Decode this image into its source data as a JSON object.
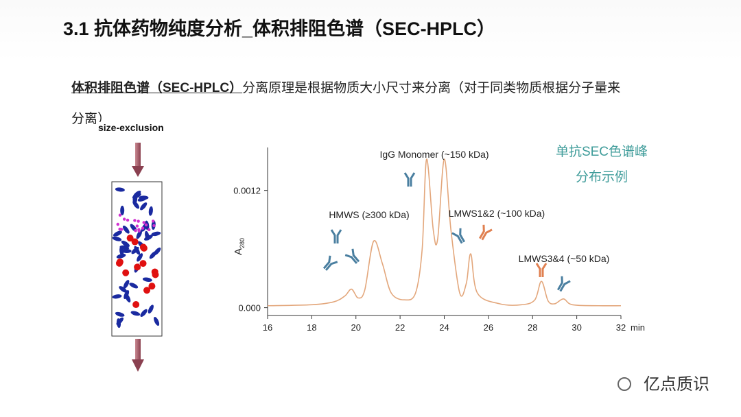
{
  "header": {
    "title": "3.1 抗体药物纯度分析_体积排阻色谱（SEC-HPLC）"
  },
  "intro": {
    "term": "体积排阻色谱（SEC-HPLC）",
    "text_line1": "分离原理是根据物质大小尺寸来分离（对于同类物质根据分子量来",
    "text_line2": "分离）"
  },
  "column_label": "size-exclusion",
  "chart_data": {
    "type": "line",
    "x": [
      16,
      18,
      19,
      19.5,
      19.8,
      20.1,
      20.4,
      20.8,
      21.2,
      21.6,
      22.2,
      22.7,
      23.0,
      23.2,
      23.5,
      23.7,
      24.0,
      24.3,
      24.7,
      25.0,
      25.2,
      25.5,
      26.5,
      27.5,
      28.1,
      28.4,
      28.7,
      29.0,
      29.4,
      29.8,
      31,
      32
    ],
    "series": [
      {
        "color": "#e3a77c",
        "values": [
          2e-05,
          3e-05,
          6e-05,
          0.00012,
          0.00019,
          0.0001,
          0.00018,
          0.00068,
          0.00045,
          0.00015,
          8e-05,
          0.00015,
          0.0006,
          0.00152,
          0.0008,
          0.0007,
          0.00152,
          0.0008,
          0.00015,
          0.00025,
          0.00055,
          0.00015,
          4e-05,
          3e-05,
          8e-05,
          0.00027,
          7e-05,
          4e-05,
          9e-05,
          3e-05,
          2e-05,
          2e-05
        ]
      }
    ],
    "xlim": [
      16,
      32
    ],
    "xticks": [
      16,
      18,
      20,
      22,
      24,
      26,
      28,
      30,
      32
    ],
    "x_unit": "min",
    "ylim": [
      -8e-05,
      0.00164
    ],
    "yticks": [
      {
        "value": 0,
        "label": "0.000"
      },
      0.0012
    ],
    "ylabel": "A",
    "ylabel_sub": "280",
    "annotations": [
      "IgG Monomer (~150 kDa)",
      "HMWS (≥300 kDa)",
      "LMWS1&2 (~100 kDa)",
      "LMWS3&4 (~50 kDa)",
      "单抗SEC色谱峰",
      "分布示例"
    ]
  },
  "logo": "亿点质识"
}
